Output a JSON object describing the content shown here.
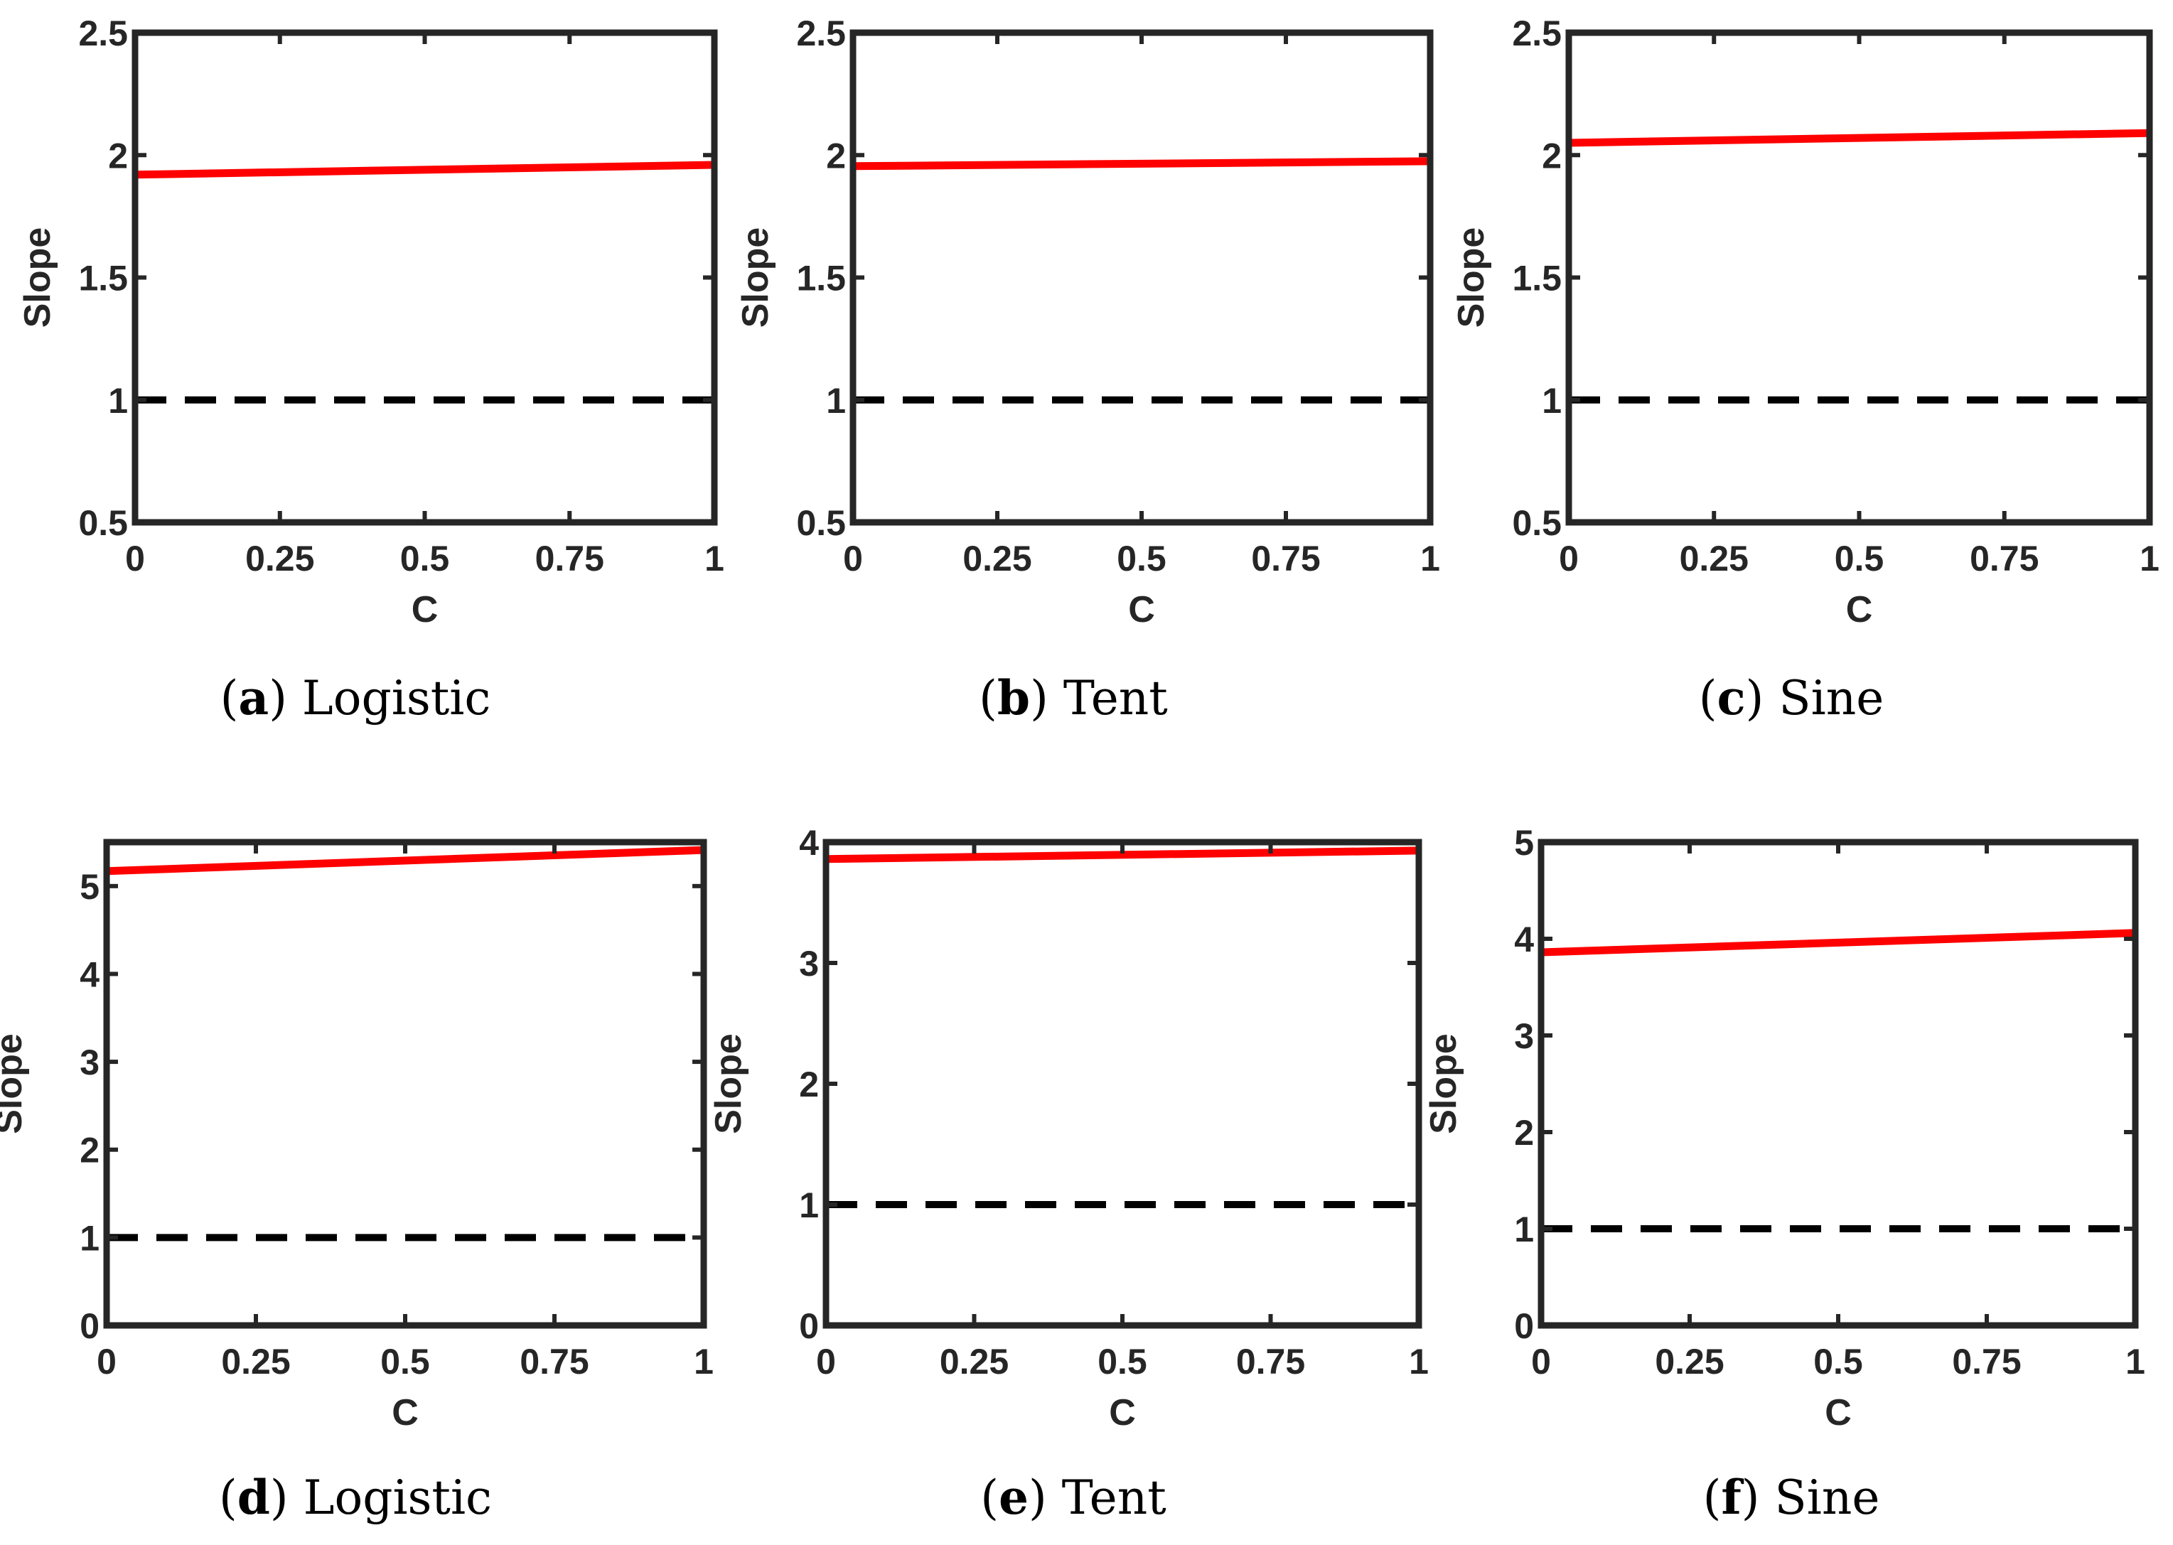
{
  "chart_data": [
    {
      "type": "line",
      "caption_letter": "a",
      "caption_name": "Logistic",
      "xlabel": "C",
      "ylabel": "Slope",
      "xlim": [
        0,
        1
      ],
      "ylim": [
        0.5,
        2.5
      ],
      "xticks": [
        0,
        0.25,
        0.5,
        0.75,
        1
      ],
      "xtick_labels": [
        "0",
        "0.25",
        "0.5",
        "0.75",
        "1"
      ],
      "yticks": [
        0.5,
        1,
        1.5,
        2,
        2.5
      ],
      "ytick_labels": [
        "0.5",
        "1",
        "1.5",
        "2",
        "2.5"
      ],
      "series": [
        {
          "style": "solid",
          "color": "#ff0000",
          "x": [
            0,
            1
          ],
          "y": [
            1.92,
            1.96
          ]
        },
        {
          "style": "dashed",
          "color": "#000000",
          "x": [
            0,
            1
          ],
          "y": [
            1,
            1
          ]
        }
      ]
    },
    {
      "type": "line",
      "caption_letter": "b",
      "caption_name": "Tent",
      "xlabel": "C",
      "ylabel": "Slope",
      "xlim": [
        0,
        1
      ],
      "ylim": [
        0.5,
        2.5
      ],
      "xticks": [
        0,
        0.25,
        0.5,
        0.75,
        1
      ],
      "xtick_labels": [
        "0",
        "0.25",
        "0.5",
        "0.75",
        "1"
      ],
      "yticks": [
        0.5,
        1,
        1.5,
        2,
        2.5
      ],
      "ytick_labels": [
        "0.5",
        "1",
        "1.5",
        "2",
        "2.5"
      ],
      "series": [
        {
          "style": "solid",
          "color": "#ff0000",
          "x": [
            0,
            1
          ],
          "y": [
            1.955,
            1.975
          ]
        },
        {
          "style": "dashed",
          "color": "#000000",
          "x": [
            0,
            1
          ],
          "y": [
            1,
            1
          ]
        }
      ]
    },
    {
      "type": "line",
      "caption_letter": "c",
      "caption_name": "Sine",
      "xlabel": "C",
      "ylabel": "Slope",
      "xlim": [
        0,
        1
      ],
      "ylim": [
        0.5,
        2.5
      ],
      "xticks": [
        0,
        0.25,
        0.5,
        0.75,
        1
      ],
      "xtick_labels": [
        "0",
        "0.25",
        "0.5",
        "0.75",
        "1"
      ],
      "yticks": [
        0.5,
        1,
        1.5,
        2,
        2.5
      ],
      "ytick_labels": [
        "0.5",
        "1",
        "1.5",
        "2",
        "2.5"
      ],
      "series": [
        {
          "style": "solid",
          "color": "#ff0000",
          "x": [
            0,
            1
          ],
          "y": [
            2.05,
            2.09
          ]
        },
        {
          "style": "dashed",
          "color": "#000000",
          "x": [
            0,
            1
          ],
          "y": [
            1,
            1
          ]
        }
      ]
    },
    {
      "type": "line",
      "caption_letter": "d",
      "caption_name": "Logistic",
      "xlabel": "C",
      "ylabel": "Slope",
      "xlim": [
        0,
        1
      ],
      "ylim": [
        0,
        5.5
      ],
      "xticks": [
        0,
        0.25,
        0.5,
        0.75,
        1
      ],
      "xtick_labels": [
        "0",
        "0.25",
        "0.5",
        "0.75",
        "1"
      ],
      "yticks": [
        0,
        1,
        2,
        3,
        4,
        5
      ],
      "ytick_labels": [
        "0",
        "1",
        "2",
        "3",
        "4",
        "5"
      ],
      "series": [
        {
          "style": "solid",
          "color": "#ff0000",
          "x": [
            0,
            1
          ],
          "y": [
            5.17,
            5.41
          ]
        },
        {
          "style": "dashed",
          "color": "#000000",
          "x": [
            0,
            1
          ],
          "y": [
            1,
            1
          ]
        }
      ]
    },
    {
      "type": "line",
      "caption_letter": "e",
      "caption_name": "Tent",
      "xlabel": "C",
      "ylabel": "Slope",
      "xlim": [
        0,
        1
      ],
      "ylim": [
        0,
        4
      ],
      "xticks": [
        0,
        0.25,
        0.5,
        0.75,
        1
      ],
      "xtick_labels": [
        "0",
        "0.25",
        "0.5",
        "0.75",
        "1"
      ],
      "yticks": [
        0,
        1,
        2,
        3,
        4
      ],
      "ytick_labels": [
        "0",
        "1",
        "2",
        "3",
        "4"
      ],
      "series": [
        {
          "style": "solid",
          "color": "#ff0000",
          "x": [
            0,
            1
          ],
          "y": [
            3.86,
            3.93
          ]
        },
        {
          "style": "dashed",
          "color": "#000000",
          "x": [
            0,
            1
          ],
          "y": [
            1,
            1
          ]
        }
      ]
    },
    {
      "type": "line",
      "caption_letter": "f",
      "caption_name": "Sine",
      "xlabel": "C",
      "ylabel": "Slope",
      "xlim": [
        0,
        1
      ],
      "ylim": [
        0,
        5
      ],
      "xticks": [
        0,
        0.25,
        0.5,
        0.75,
        1
      ],
      "xtick_labels": [
        "0",
        "0.25",
        "0.5",
        "0.75",
        "1"
      ],
      "yticks": [
        0,
        1,
        2,
        3,
        4,
        5
      ],
      "ytick_labels": [
        "0",
        "1",
        "2",
        "3",
        "4",
        "5"
      ],
      "series": [
        {
          "style": "solid",
          "color": "#ff0000",
          "x": [
            0,
            1
          ],
          "y": [
            3.86,
            4.06
          ]
        },
        {
          "style": "dashed",
          "color": "#000000",
          "x": [
            0,
            1
          ],
          "y": [
            1,
            1
          ]
        }
      ]
    }
  ]
}
